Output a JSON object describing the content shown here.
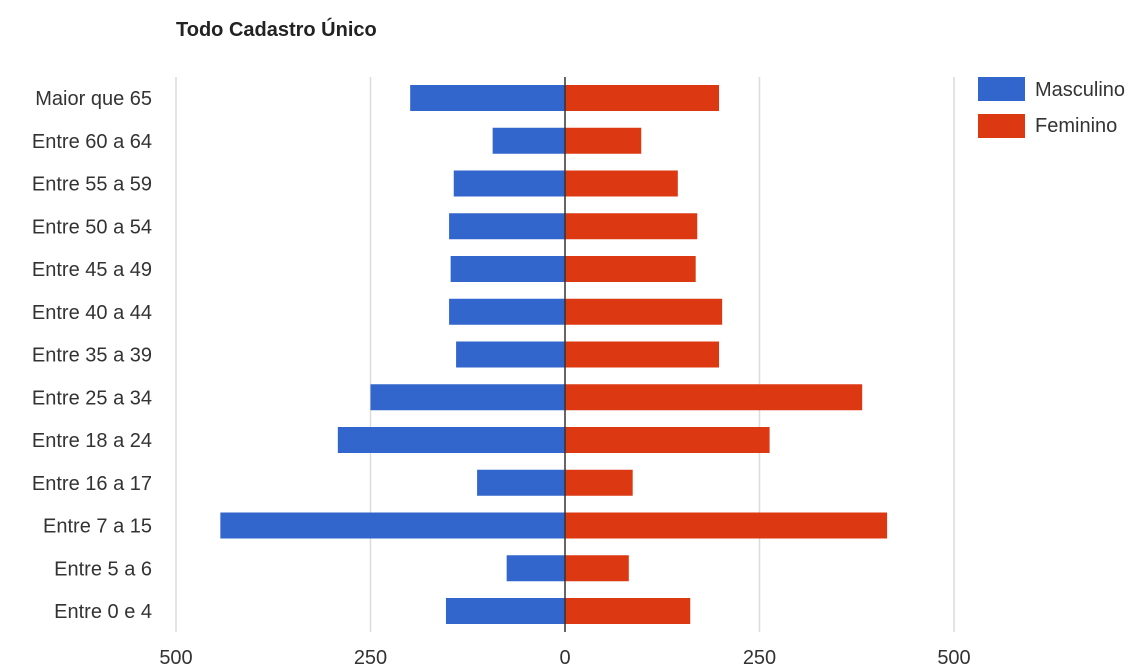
{
  "chart_data": {
    "type": "bar",
    "orientation": "horizontal",
    "title": "Todo Cadastro Único",
    "categories": [
      "Maior que 65",
      "Entre 60 a 64",
      "Entre 55 a 59",
      "Entre 50 a 54",
      "Entre 45 a 49",
      "Entre 40 a 44",
      "Entre 35 a 39",
      "Entre 25 a 34",
      "Entre 18 a 24",
      "Entre 16 a 17",
      "Entre 7 a 15",
      "Entre 5 a 6",
      "Entre 0 e 4"
    ],
    "series": [
      {
        "name": "Masculino",
        "color": "#3366cc",
        "values": [
          -199,
          -93,
          -143,
          -149,
          -147,
          -149,
          -140,
          -250,
          -292,
          -113,
          -443,
          -75,
          -153
        ]
      },
      {
        "name": "Feminino",
        "color": "#dc3912",
        "values": [
          198,
          98,
          145,
          170,
          168,
          202,
          198,
          382,
          263,
          87,
          414,
          82,
          161
        ]
      }
    ],
    "xlim": [
      -500,
      500
    ],
    "xticks": [
      -500,
      -250,
      0,
      250,
      500
    ],
    "xtick_labels": [
      "500",
      "250",
      "0",
      "250",
      "500"
    ],
    "grid": true,
    "legend_position": "top-right"
  }
}
